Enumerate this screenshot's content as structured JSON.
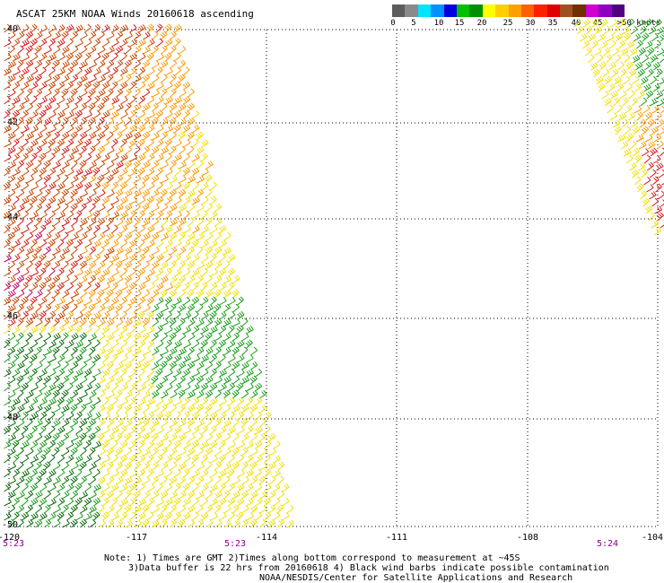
{
  "title": "ASCAT 25KM NOAA Winds 20160618 ascending",
  "legend": {
    "colors": [
      "#5c5c5c",
      "#8a8a8a",
      "#00e5ff",
      "#0090ff",
      "#0000e0",
      "#00c000",
      "#009000",
      "#ffff00",
      "#ffd000",
      "#ffa000",
      "#ff6000",
      "#ff2000",
      "#e00000",
      "#a05020",
      "#703000",
      "#d000d0",
      "#9000c0",
      "#500080"
    ],
    "labels": [
      "0",
      "5",
      "10",
      "15",
      "20",
      "25",
      "30",
      "35",
      "40",
      "45",
      ">50 knots"
    ]
  },
  "lat_labels": [
    "-40",
    "-42",
    "-44",
    "-46",
    "-48",
    "-50"
  ],
  "lon_labels": [
    "-120",
    "-117",
    "-114",
    "-111",
    "-108",
    "-104"
  ],
  "times": [
    "5:23",
    "5:23",
    "5:24"
  ],
  "notes": {
    "line1": "Note: 1) Times are GMT 2)Times along bottom correspond to measurement at ~45S",
    "line2": "3)Data buffer is 22 hrs from 20160618 4) Black wind barbs indicate possible contamination",
    "line3": "NOAA/NESDIS/Center for Satellite Applications and Research"
  },
  "swath_colors": {
    "strong": "#cc4400",
    "orange": "#ff9900",
    "yellow": "#f2e000",
    "green": "#1a9e1a",
    "darkgreen": "#0b6b0b",
    "red": "#d81818",
    "magenta": "#c0006a"
  }
}
